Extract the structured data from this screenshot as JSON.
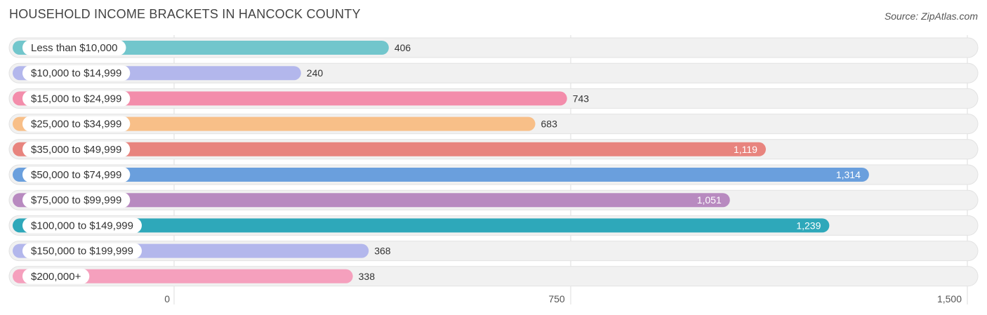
{
  "header": {
    "title": "HOUSEHOLD INCOME BRACKETS IN HANCOCK COUNTY",
    "source": "Source: ZipAtlas.com"
  },
  "chart_data": {
    "type": "bar",
    "orientation": "horizontal",
    "title": "HOUSEHOLD INCOME BRACKETS IN HANCOCK COUNTY",
    "categories": [
      "Less than $10,000",
      "$10,000 to $14,999",
      "$15,000 to $24,999",
      "$25,000 to $34,999",
      "$35,000 to $49,999",
      "$50,000 to $74,999",
      "$75,000 to $99,999",
      "$100,000 to $149,999",
      "$150,000 to $199,999",
      "$200,000+"
    ],
    "values": [
      406,
      240,
      743,
      683,
      1119,
      1314,
      1051,
      1239,
      368,
      338
    ],
    "value_labels": [
      "406",
      "240",
      "743",
      "683",
      "1,119",
      "1,314",
      "1,051",
      "1,239",
      "368",
      "338"
    ],
    "colors": [
      "#72c6cc",
      "#b3b7ec",
      "#f38dab",
      "#f8bf88",
      "#e8847e",
      "#6a9fdd",
      "#b88ac0",
      "#2ea8ba",
      "#b3b7ec",
      "#f5a0bd"
    ],
    "xlim": [
      0,
      1500
    ],
    "xticks": [
      0,
      750,
      1500
    ],
    "xtick_labels": [
      "0",
      "750",
      "1,500"
    ],
    "grid": true
  }
}
